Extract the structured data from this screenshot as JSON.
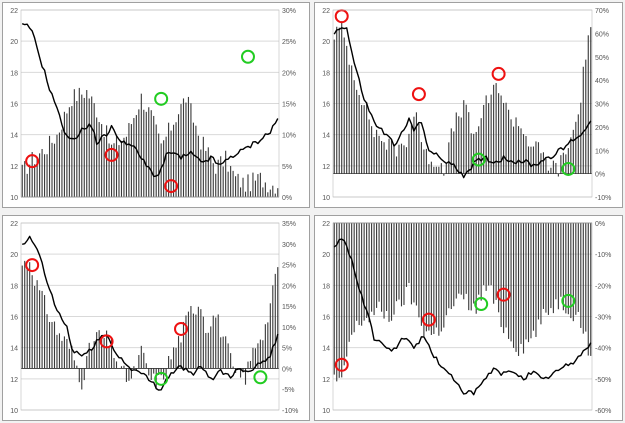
{
  "colors": {
    "bars": "#3a3a3a",
    "line": "#000000",
    "gridline": "#d9d9d9",
    "axis_text": "#555555",
    "red_marker": "#ee1111",
    "green_marker": "#22cc22"
  },
  "chart_data": [
    {
      "type": "bar+line",
      "left_axis": {
        "ylim": [
          10,
          22
        ],
        "ticks": [
          "10",
          "12",
          "14",
          "16",
          "18",
          "20",
          "22"
        ]
      },
      "right_axis": {
        "ylim": [
          0,
          30
        ],
        "ticks": [
          "0%",
          "5%",
          "10%",
          "15%",
          "20%",
          "25%",
          "30%"
        ],
        "bar_baseline": 0
      },
      "bars": {
        "n": 104,
        "points": [
          [
            0,
            4
          ],
          [
            4,
            6
          ],
          [
            10,
            8
          ],
          [
            14,
            10
          ],
          [
            20,
            16
          ],
          [
            26,
            17
          ],
          [
            30,
            14
          ],
          [
            36,
            8
          ],
          [
            42,
            10
          ],
          [
            48,
            16
          ],
          [
            52,
            13
          ],
          [
            56,
            8
          ],
          [
            62,
            13
          ],
          [
            66,
            16
          ],
          [
            72,
            9
          ],
          [
            78,
            5
          ],
          [
            82,
            6
          ],
          [
            86,
            3
          ],
          [
            90,
            2
          ],
          [
            96,
            3
          ],
          [
            100,
            2
          ]
        ]
      },
      "line": {
        "n": 104,
        "points": [
          [
            0,
            21
          ],
          [
            3,
            20.9
          ],
          [
            5,
            20.1
          ],
          [
            8,
            18.5
          ],
          [
            12,
            16.5
          ],
          [
            14,
            15.8
          ],
          [
            16,
            14.5
          ],
          [
            20,
            13.6
          ],
          [
            24,
            14.3
          ],
          [
            28,
            14.6
          ],
          [
            30,
            13.5
          ],
          [
            34,
            14.0
          ],
          [
            36,
            14.6
          ],
          [
            38,
            13.8
          ],
          [
            42,
            13.5
          ],
          [
            46,
            13.0
          ],
          [
            50,
            12.0
          ],
          [
            54,
            11.3
          ],
          [
            56,
            11.8
          ],
          [
            58,
            12.6
          ],
          [
            60,
            12.9
          ],
          [
            64,
            12.5
          ],
          [
            68,
            12.8
          ],
          [
            72,
            12.2
          ],
          [
            76,
            12.5
          ],
          [
            80,
            12.0
          ],
          [
            84,
            12.6
          ],
          [
            88,
            12.9
          ],
          [
            92,
            13.3
          ],
          [
            96,
            13.7
          ],
          [
            100,
            14.2
          ],
          [
            103,
            15.0
          ]
        ]
      },
      "markers": [
        {
          "color": "red",
          "x": 4,
          "y": 12.3
        },
        {
          "color": "red",
          "x": 36,
          "y": 12.7
        },
        {
          "color": "red",
          "x": 60,
          "y": 10.7
        },
        {
          "color": "green",
          "x": 56,
          "y": 16.3
        },
        {
          "color": "green",
          "x": 91,
          "y": 19.0
        }
      ]
    },
    {
      "type": "bar+line",
      "left_axis": {
        "ylim": [
          10,
          22
        ],
        "ticks": [
          "10",
          "12",
          "14",
          "16",
          "18",
          "20",
          "22"
        ]
      },
      "right_axis": {
        "ylim": [
          -10,
          70
        ],
        "ticks": [
          "-10%",
          "0%",
          "10%",
          "20%",
          "30%",
          "40%",
          "50%",
          "60%",
          "70%"
        ],
        "bar_baseline": 0
      },
      "bars": {
        "n": 104,
        "points": [
          [
            0,
            60
          ],
          [
            3,
            62
          ],
          [
            8,
            42
          ],
          [
            12,
            30
          ],
          [
            16,
            18
          ],
          [
            20,
            14
          ],
          [
            24,
            10
          ],
          [
            28,
            12
          ],
          [
            30,
            18
          ],
          [
            33,
            28
          ],
          [
            36,
            8
          ],
          [
            40,
            6
          ],
          [
            44,
            3
          ],
          [
            48,
            20
          ],
          [
            52,
            30
          ],
          [
            56,
            15
          ],
          [
            58,
            22
          ],
          [
            62,
            32
          ],
          [
            66,
            38
          ],
          [
            70,
            25
          ],
          [
            74,
            22
          ],
          [
            78,
            14
          ],
          [
            82,
            10
          ],
          [
            86,
            4
          ],
          [
            90,
            2
          ],
          [
            94,
            12
          ],
          [
            98,
            25
          ],
          [
            102,
            60
          ]
        ]
      },
      "line": {
        "n": 104,
        "points": [
          [
            0,
            20.5
          ],
          [
            3,
            21
          ],
          [
            5,
            20.8
          ],
          [
            8,
            18.6
          ],
          [
            12,
            16.3
          ],
          [
            16,
            14.8
          ],
          [
            20,
            14.1
          ],
          [
            24,
            13.4
          ],
          [
            28,
            14.2
          ],
          [
            30,
            15.0
          ],
          [
            32,
            14.3
          ],
          [
            35,
            14.8
          ],
          [
            38,
            13.1
          ],
          [
            42,
            12.5
          ],
          [
            46,
            12.2
          ],
          [
            50,
            11.7
          ],
          [
            52,
            11.4
          ],
          [
            56,
            12.1
          ],
          [
            60,
            12.6
          ],
          [
            64,
            12.2
          ],
          [
            68,
            12.5
          ],
          [
            72,
            12.3
          ],
          [
            76,
            12.3
          ],
          [
            80,
            12.0
          ],
          [
            84,
            12.4
          ],
          [
            88,
            12.7
          ],
          [
            92,
            13.1
          ],
          [
            96,
            13.7
          ],
          [
            100,
            14.1
          ],
          [
            103,
            15.0
          ]
        ]
      },
      "markers": [
        {
          "color": "red",
          "x": 3,
          "y": 21.6
        },
        {
          "color": "red",
          "x": 34,
          "y": 16.6
        },
        {
          "color": "red",
          "x": 66,
          "y": 17.9
        },
        {
          "color": "green",
          "x": 58,
          "y": 12.4
        },
        {
          "color": "green",
          "x": 94,
          "y": 11.8
        }
      ]
    },
    {
      "type": "bar+line",
      "left_axis": {
        "ylim": [
          10,
          22
        ],
        "ticks": [
          "10",
          "12",
          "14",
          "16",
          "18",
          "20",
          "22"
        ]
      },
      "right_axis": {
        "ylim": [
          -10,
          35
        ],
        "ticks": [
          "-10%",
          "-5%",
          "0%",
          "5%",
          "10%",
          "15%",
          "20%",
          "25%",
          "30%",
          "35%"
        ],
        "bar_baseline": 0
      },
      "bars": {
        "n": 104,
        "points": [
          [
            0,
            25
          ],
          [
            3,
            26
          ],
          [
            6,
            20
          ],
          [
            10,
            14
          ],
          [
            14,
            9
          ],
          [
            18,
            6
          ],
          [
            20,
            4
          ],
          [
            24,
            -3
          ],
          [
            27,
            4
          ],
          [
            30,
            8
          ],
          [
            34,
            7
          ],
          [
            37,
            4
          ],
          [
            40,
            -1
          ],
          [
            44,
            -3
          ],
          [
            48,
            4
          ],
          [
            52,
            -3
          ],
          [
            56,
            -3
          ],
          [
            60,
            3
          ],
          [
            64,
            8
          ],
          [
            68,
            14
          ],
          [
            72,
            16
          ],
          [
            74,
            10
          ],
          [
            78,
            13
          ],
          [
            82,
            6
          ],
          [
            86,
            -2
          ],
          [
            90,
            -2
          ],
          [
            94,
            6
          ],
          [
            98,
            10
          ],
          [
            101,
            18
          ],
          [
            103,
            25
          ]
        ]
      },
      "line": {
        "n": 104,
        "points": [
          [
            0,
            20.5
          ],
          [
            3,
            21.0
          ],
          [
            6,
            20.4
          ],
          [
            10,
            18.2
          ],
          [
            14,
            16.4
          ],
          [
            18,
            15.3
          ],
          [
            20,
            13.9
          ],
          [
            24,
            13.5
          ],
          [
            28,
            13.8
          ],
          [
            30,
            14.6
          ],
          [
            34,
            14.8
          ],
          [
            38,
            13.6
          ],
          [
            42,
            12.9
          ],
          [
            46,
            12.5
          ],
          [
            50,
            12.1
          ],
          [
            54,
            11.5
          ],
          [
            56,
            11.4
          ],
          [
            58,
            11.9
          ],
          [
            60,
            12.4
          ],
          [
            64,
            12.8
          ],
          [
            68,
            12.3
          ],
          [
            72,
            12.7
          ],
          [
            76,
            12.0
          ],
          [
            80,
            12.5
          ],
          [
            84,
            12.2
          ],
          [
            88,
            12.7
          ],
          [
            92,
            12.5
          ],
          [
            96,
            13.1
          ],
          [
            100,
            13.5
          ],
          [
            103,
            14.8
          ]
        ]
      },
      "markers": [
        {
          "color": "red",
          "x": 4,
          "y": 19.3
        },
        {
          "color": "red",
          "x": 34,
          "y": 14.4
        },
        {
          "color": "red",
          "x": 64,
          "y": 15.2
        },
        {
          "color": "green",
          "x": 56,
          "y": 12.0
        },
        {
          "color": "green",
          "x": 96,
          "y": 12.1
        }
      ]
    },
    {
      "type": "bar+line",
      "left_axis": {
        "ylim": [
          10,
          22
        ],
        "ticks": [
          "10",
          "12",
          "14",
          "16",
          "18",
          "20",
          "22"
        ]
      },
      "right_axis": {
        "ylim": [
          -60,
          0
        ],
        "ticks": [
          "-60%",
          "-50%",
          "-40%",
          "-30%",
          "-20%",
          "-10%",
          "0%"
        ],
        "bar_baseline": 0
      },
      "bars": {
        "n": 104,
        "points": [
          [
            0,
            -50
          ],
          [
            3,
            -52
          ],
          [
            6,
            -38
          ],
          [
            10,
            -32
          ],
          [
            14,
            -30
          ],
          [
            18,
            -28
          ],
          [
            22,
            -30
          ],
          [
            26,
            -27
          ],
          [
            28,
            -24
          ],
          [
            30,
            -22
          ],
          [
            32,
            -26
          ],
          [
            34,
            -30
          ],
          [
            36,
            -34
          ],
          [
            40,
            -36
          ],
          [
            44,
            -32
          ],
          [
            48,
            -26
          ],
          [
            52,
            -24
          ],
          [
            56,
            -28
          ],
          [
            58,
            -25
          ],
          [
            60,
            -22
          ],
          [
            62,
            -20
          ],
          [
            64,
            -25
          ],
          [
            66,
            -30
          ],
          [
            70,
            -36
          ],
          [
            74,
            -40
          ],
          [
            78,
            -38
          ],
          [
            82,
            -33
          ],
          [
            86,
            -28
          ],
          [
            90,
            -25
          ],
          [
            94,
            -27
          ],
          [
            98,
            -30
          ],
          [
            101,
            -36
          ],
          [
            103,
            -45
          ]
        ]
      },
      "line": {
        "n": 104,
        "points": [
          [
            0,
            20.5
          ],
          [
            3,
            20.9
          ],
          [
            5,
            20.6
          ],
          [
            8,
            19.0
          ],
          [
            12,
            16.8
          ],
          [
            14,
            15.9
          ],
          [
            16,
            14.6
          ],
          [
            20,
            14.0
          ],
          [
            24,
            13.9
          ],
          [
            28,
            14.6
          ],
          [
            32,
            14.1
          ],
          [
            36,
            14.7
          ],
          [
            40,
            13.5
          ],
          [
            44,
            12.6
          ],
          [
            48,
            12.0
          ],
          [
            52,
            11.2
          ],
          [
            56,
            11.0
          ],
          [
            60,
            11.9
          ],
          [
            64,
            12.6
          ],
          [
            68,
            12.3
          ],
          [
            72,
            12.5
          ],
          [
            76,
            12.1
          ],
          [
            80,
            12.4
          ],
          [
            84,
            11.9
          ],
          [
            88,
            12.4
          ],
          [
            92,
            12.7
          ],
          [
            96,
            13.1
          ],
          [
            100,
            13.7
          ],
          [
            103,
            14.4
          ]
        ]
      },
      "markers": [
        {
          "color": "red",
          "x": 3,
          "y": 12.9
        },
        {
          "color": "red",
          "x": 38,
          "y": 15.8
        },
        {
          "color": "red",
          "x": 68,
          "y": 17.4
        },
        {
          "color": "green",
          "x": 59,
          "y": 16.8
        },
        {
          "color": "green",
          "x": 94,
          "y": 17.0
        }
      ]
    }
  ]
}
